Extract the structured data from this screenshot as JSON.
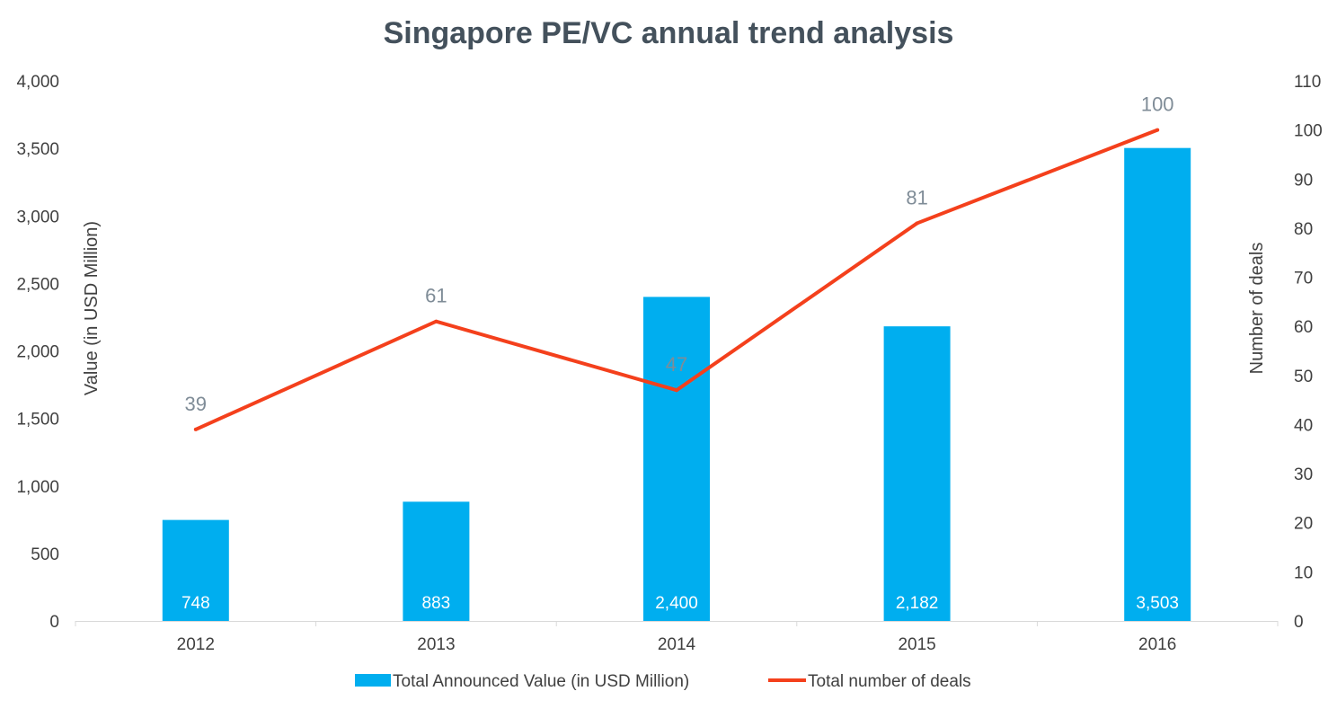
{
  "chart_data": {
    "type": "bar",
    "title": "Singapore PE/VC annual trend analysis",
    "categories": [
      "2012",
      "2013",
      "2014",
      "2015",
      "2016"
    ],
    "series": [
      {
        "name": "Total Announced Value (in USD Million)",
        "type": "bar",
        "axis": "left",
        "values": [
          748,
          883,
          2400,
          2182,
          3503
        ],
        "labels": [
          "748",
          "883",
          "2,400",
          "2,182",
          "3,503"
        ],
        "color": "#00aeef"
      },
      {
        "name": "Total number of deals",
        "type": "line",
        "axis": "right",
        "values": [
          39,
          61,
          47,
          81,
          100
        ],
        "labels": [
          "39",
          "61",
          "47",
          "81",
          "100"
        ],
        "color": "#f4401c"
      }
    ],
    "ylabel": "Value (in USD Million)",
    "y2label": "Number of deals",
    "ylim": [
      0,
      4000
    ],
    "y2lim": [
      0,
      110
    ],
    "yticks": [
      "0",
      "500",
      "1,000",
      "1,500",
      "2,000",
      "2,500",
      "3,000",
      "3,500",
      "4,000"
    ],
    "y2ticks": [
      "0",
      "10",
      "20",
      "30",
      "40",
      "50",
      "60",
      "70",
      "80",
      "90",
      "100",
      "110"
    ],
    "grid": false,
    "legend": "bottom"
  }
}
